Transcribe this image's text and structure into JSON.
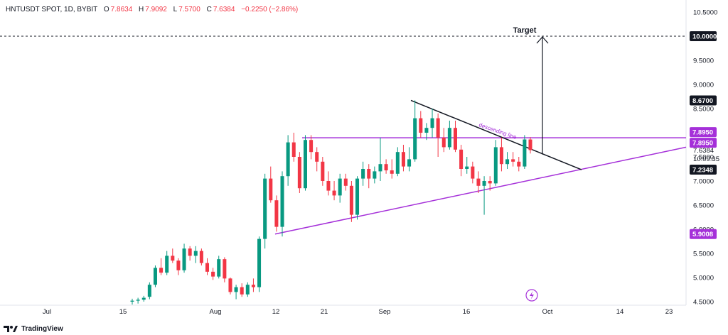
{
  "header": {
    "symbol": "HNTUSDT SPOT, 1D, BYBIT",
    "o_label": "O",
    "o": "7.8634",
    "h_label": "H",
    "h": "7.9092",
    "l_label": "L",
    "l": "7.5700",
    "c_label": "C",
    "c": "7.6384",
    "change": "−0.2250 (−2.86%)"
  },
  "footer": {
    "brand": "TradingView"
  },
  "colors": {
    "up": "#089981",
    "down": "#f23645",
    "purple": "#a530d9",
    "black": "#131722",
    "grid": "#e0e3eb"
  },
  "chart_data": {
    "type": "candlestick",
    "y_axis": {
      "ticks": [
        "4.5000",
        "5.0000",
        "5.5000",
        "6.0000",
        "6.5000",
        "7.0000",
        "7.5000",
        "8.0000",
        "8.5000",
        "9.0000",
        "9.5000",
        "10.5000"
      ],
      "range": [
        4.45,
        10.62
      ]
    },
    "x_axis": {
      "ticks": [
        "Jul",
        "15",
        "Aug",
        "12",
        "21",
        "Sep",
        "16",
        "Oct",
        "14",
        "23"
      ]
    },
    "price_labels": [
      {
        "text": "10.0000",
        "style": "black"
      },
      {
        "text": "8.6700",
        "style": "black"
      },
      {
        "text": "7.8950",
        "style": "purple"
      },
      {
        "text": "7.8950",
        "style": "purple"
      },
      {
        "text": "7.6384",
        "style": "plain"
      },
      {
        "text": "10:09:35",
        "style": "plain"
      },
      {
        "text": "7.2348",
        "style": "black"
      },
      {
        "text": "5.9008",
        "style": "purple"
      }
    ],
    "annotations": {
      "target": "Target",
      "descending": "descending line"
    },
    "candles": [
      [
        4.5,
        4.56,
        4.44,
        4.52
      ],
      [
        4.52,
        4.58,
        4.46,
        4.54
      ],
      [
        4.54,
        4.62,
        4.5,
        4.58
      ],
      [
        4.6,
        4.9,
        4.55,
        4.85
      ],
      [
        4.85,
        5.25,
        4.8,
        5.2
      ],
      [
        5.2,
        5.4,
        5.05,
        5.1
      ],
      [
        5.1,
        5.55,
        5.05,
        5.45
      ],
      [
        5.45,
        5.6,
        5.3,
        5.35
      ],
      [
        5.35,
        5.4,
        5.05,
        5.15
      ],
      [
        5.15,
        5.7,
        5.1,
        5.6
      ],
      [
        5.6,
        5.65,
        5.35,
        5.45
      ],
      [
        5.45,
        5.65,
        5.3,
        5.55
      ],
      [
        5.55,
        5.6,
        5.25,
        5.3
      ],
      [
        5.3,
        5.4,
        5.05,
        5.12
      ],
      [
        5.12,
        5.2,
        4.95,
        5.02
      ],
      [
        5.02,
        5.45,
        4.98,
        5.38
      ],
      [
        5.38,
        5.42,
        4.9,
        4.98
      ],
      [
        4.98,
        5.0,
        4.65,
        4.7
      ],
      [
        4.7,
        4.85,
        4.55,
        4.8
      ],
      [
        4.8,
        4.88,
        4.6,
        4.65
      ],
      [
        4.65,
        4.9,
        4.6,
        4.85
      ],
      [
        4.85,
        4.98,
        4.7,
        4.8
      ],
      [
        4.8,
        5.85,
        4.7,
        5.8
      ],
      [
        5.8,
        7.15,
        5.6,
        7.05
      ],
      [
        7.05,
        7.3,
        6.55,
        6.6
      ],
      [
        6.6,
        6.7,
        5.95,
        6.05
      ],
      [
        6.05,
        7.2,
        5.85,
        7.1
      ],
      [
        7.1,
        7.95,
        6.9,
        7.8
      ],
      [
        7.8,
        8.0,
        7.4,
        7.5
      ],
      [
        7.5,
        7.6,
        6.75,
        6.85
      ],
      [
        6.85,
        7.95,
        6.8,
        7.85
      ],
      [
        7.85,
        7.95,
        7.45,
        7.6
      ],
      [
        7.6,
        7.7,
        7.2,
        7.4
      ],
      [
        7.4,
        7.5,
        6.9,
        7.0
      ],
      [
        7.0,
        7.2,
        6.7,
        6.8
      ],
      [
        6.8,
        7.0,
        6.6,
        6.7
      ],
      [
        6.7,
        7.15,
        6.55,
        7.05
      ],
      [
        7.05,
        7.15,
        6.8,
        6.9
      ],
      [
        6.9,
        7.0,
        6.15,
        6.3
      ],
      [
        6.3,
        7.1,
        6.2,
        7.05
      ],
      [
        7.05,
        7.4,
        6.9,
        7.25
      ],
      [
        7.25,
        7.35,
        6.85,
        7.05
      ],
      [
        7.05,
        7.3,
        6.95,
        7.2
      ],
      [
        7.2,
        7.9,
        7.0,
        7.35
      ],
      [
        7.35,
        7.45,
        7.15,
        7.22
      ],
      [
        7.22,
        7.45,
        7.05,
        7.15
      ],
      [
        7.15,
        7.7,
        7.1,
        7.6
      ],
      [
        7.6,
        7.75,
        7.2,
        7.3
      ],
      [
        7.3,
        7.7,
        7.2,
        7.45
      ],
      [
        7.45,
        8.67,
        7.4,
        8.3
      ],
      [
        8.3,
        8.45,
        7.9,
        8.0
      ],
      [
        8.0,
        8.2,
        7.85,
        8.1
      ],
      [
        8.1,
        8.5,
        7.9,
        8.3
      ],
      [
        8.3,
        8.4,
        7.5,
        7.9
      ],
      [
        7.9,
        8.1,
        7.6,
        7.7
      ],
      [
        7.7,
        8.25,
        7.65,
        8.1
      ],
      [
        8.1,
        8.25,
        7.6,
        7.65
      ],
      [
        7.65,
        7.75,
        7.1,
        7.25
      ],
      [
        7.25,
        7.5,
        7.15,
        7.3
      ],
      [
        7.3,
        7.4,
        6.95,
        7.05
      ],
      [
        7.05,
        7.2,
        6.75,
        6.9
      ],
      [
        6.9,
        7.1,
        6.3,
        7.0
      ],
      [
        7.0,
        7.1,
        6.8,
        6.95
      ],
      [
        6.95,
        7.85,
        6.9,
        7.7
      ],
      [
        7.7,
        7.9,
        7.2,
        7.35
      ],
      [
        7.35,
        7.6,
        7.25,
        7.45
      ],
      [
        7.45,
        7.6,
        7.3,
        7.4
      ],
      [
        7.4,
        7.5,
        7.2,
        7.3
      ],
      [
        7.3,
        7.95,
        7.25,
        7.86
      ],
      [
        7.86,
        7.91,
        7.57,
        7.64
      ]
    ]
  }
}
